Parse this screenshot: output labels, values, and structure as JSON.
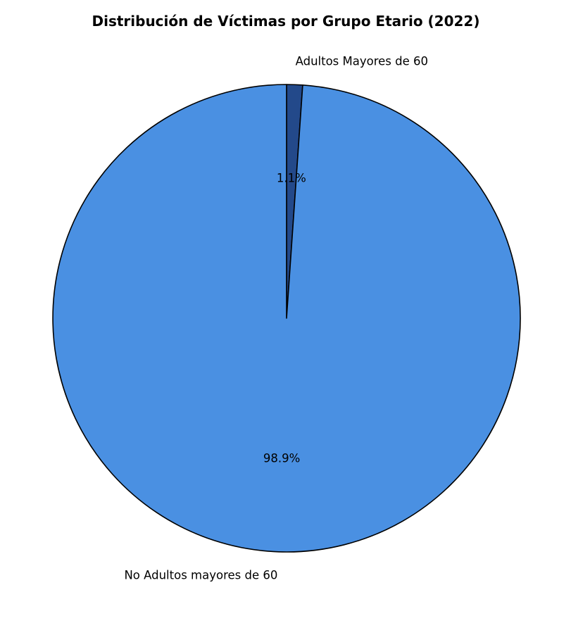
{
  "chart_data": {
    "type": "pie",
    "title": "Distribución de Víctimas por Grupo Etario (2022)",
    "start_angle": "top",
    "direction": "clockwise",
    "slices": [
      {
        "label": "Adultos Mayores de 60",
        "value": 1.1,
        "pct_label": "1.1%",
        "color": "#23498A"
      },
      {
        "label": "No Adultos mayores de 60",
        "value": 98.9,
        "pct_label": "98.9%",
        "color": "#4A90E2"
      }
    ],
    "edge_color": "#000000",
    "legend": "none"
  }
}
